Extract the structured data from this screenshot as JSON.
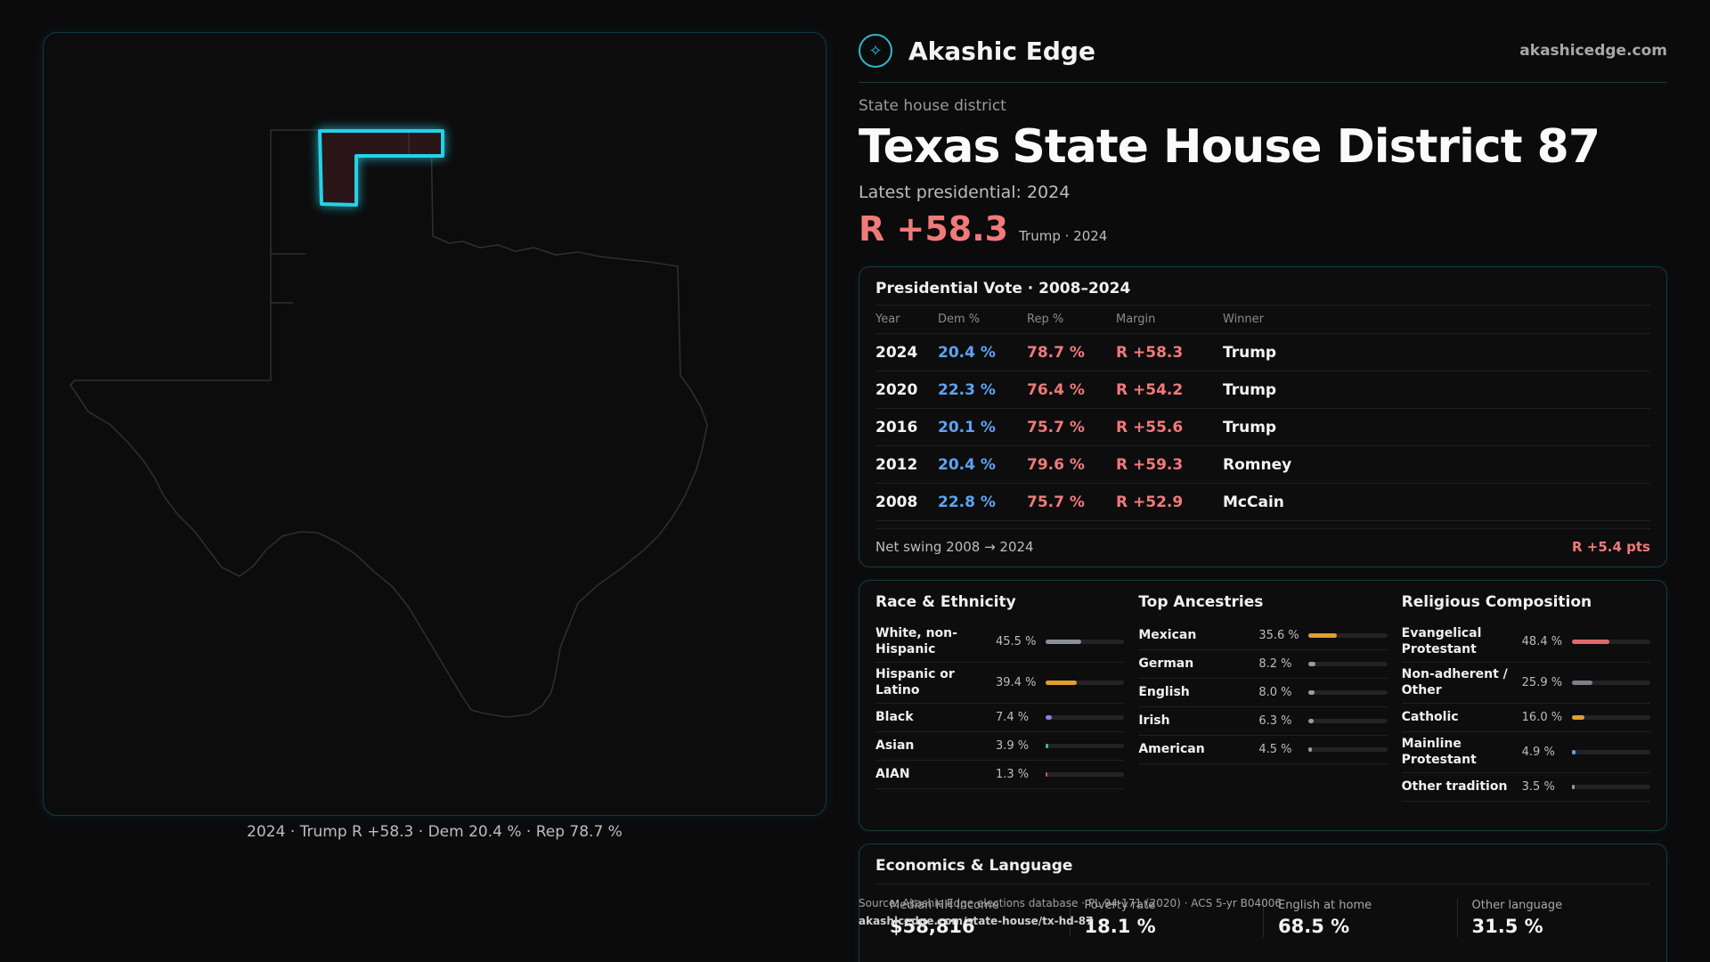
{
  "brand": {
    "name": "Akashic Edge",
    "url": "akashicedge.com",
    "logo_icon": "compass-rose-icon"
  },
  "district": {
    "kind": "State house district",
    "state": "Texas",
    "name": "State House District 87",
    "latest_label": "Latest presidential: 2024",
    "margin": "R +58.3",
    "margin_sub": "Trump · 2024"
  },
  "map": {
    "caption": "2024 · Trump R +58.3 · Dem 20.4 % · Rep 78.7 %"
  },
  "presidential": {
    "title": "Presidential Vote · 2008–2024",
    "headers": [
      "Year",
      "Dem %",
      "Rep %",
      "Margin",
      "Winner"
    ],
    "rows": [
      {
        "year": "2024",
        "dem": "20.4 %",
        "rep": "78.7 %",
        "margin": "R +58.3",
        "winner": "Trump"
      },
      {
        "year": "2020",
        "dem": "22.3 %",
        "rep": "76.4 %",
        "margin": "R +54.2",
        "winner": "Trump"
      },
      {
        "year": "2016",
        "dem": "20.1 %",
        "rep": "75.7 %",
        "margin": "R +55.6",
        "winner": "Trump"
      },
      {
        "year": "2012",
        "dem": "20.4 %",
        "rep": "79.6 %",
        "margin": "R +59.3",
        "winner": "Romney"
      },
      {
        "year": "2008",
        "dem": "22.8 %",
        "rep": "75.7 %",
        "margin": "R +52.9",
        "winner": "McCain"
      }
    ],
    "swing_label": "Net swing 2008 → 2024",
    "swing_value": "R +5.4 pts"
  },
  "race": {
    "title": "Race & Ethnicity",
    "rows": [
      {
        "label": "White, non-Hispanic",
        "value": "45.5 %",
        "pct": 45.5,
        "color": "#8b8f99"
      },
      {
        "label": "Hispanic or Latino",
        "value": "39.4 %",
        "pct": 39.4,
        "color": "#e0a030"
      },
      {
        "label": "Black",
        "value": "7.4 %",
        "pct": 7.4,
        "color": "#8a7fe0"
      },
      {
        "label": "Asian",
        "value": "3.9 %",
        "pct": 3.9,
        "color": "#3fbf8a"
      },
      {
        "label": "AIAN",
        "value": "1.3 %",
        "pct": 1.3,
        "color": "#d05a3a"
      }
    ]
  },
  "ancestry": {
    "title": "Top Ancestries",
    "rows": [
      {
        "label": "Mexican",
        "value": "35.6 %",
        "pct": 35.6,
        "color": "#e0a030"
      },
      {
        "label": "German",
        "value": "8.2 %",
        "pct": 8.2,
        "color": "#9a9aa0"
      },
      {
        "label": "English",
        "value": "8.0 %",
        "pct": 8.0,
        "color": "#9a9aa0"
      },
      {
        "label": "Irish",
        "value": "6.3 %",
        "pct": 6.3,
        "color": "#9a9aa0"
      },
      {
        "label": "American",
        "value": "4.5 %",
        "pct": 4.5,
        "color": "#9a9aa0"
      }
    ]
  },
  "religion": {
    "title": "Religious Composition",
    "rows": [
      {
        "label": "Evangelical Protestant",
        "value": "48.4 %",
        "pct": 48.4,
        "color": "#e06a6a"
      },
      {
        "label": "Non-adherent / Other",
        "value": "25.9 %",
        "pct": 25.9,
        "color": "#7d7f88"
      },
      {
        "label": "Catholic",
        "value": "16.0 %",
        "pct": 16.0,
        "color": "#e0a030"
      },
      {
        "label": "Mainline Protestant",
        "value": "4.9 %",
        "pct": 4.9,
        "color": "#5ea2f2"
      },
      {
        "label": "Other tradition",
        "value": "3.5 %",
        "pct": 3.5,
        "color": "#9a9aa0"
      }
    ]
  },
  "economics": {
    "title": "Economics & Language",
    "items": [
      {
        "label": "Median HH income",
        "value": "$58,816"
      },
      {
        "label": "Poverty rate",
        "value": "18.1 %"
      },
      {
        "label": "English at home",
        "value": "68.5 %"
      },
      {
        "label": "Other language",
        "value": "31.5 %"
      }
    ]
  },
  "source": {
    "line1": "Source: Akashic Edge elections database · PL 94-171 (2020) · ACS 5-yr B04006",
    "line2": "akashicedge.com/state-house/tx-hd-87"
  }
}
